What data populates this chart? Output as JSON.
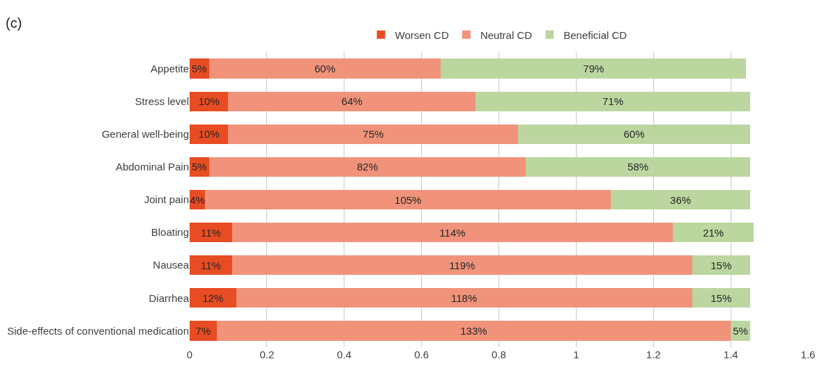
{
  "chart_data": {
    "type": "bar",
    "orientation": "horizontal",
    "stacked": true,
    "annotations": [
      "(c)"
    ],
    "categories": [
      "Appetite",
      "Stress level",
      "General well-being",
      "Abdominal Pain",
      "Joint pain",
      "Bloating",
      "Nausea",
      "Diarrhea",
      "Side-effects of conventional medication"
    ],
    "series": [
      {
        "name": "Worsen CD",
        "color": "#e84c22",
        "values": [
          0.05,
          0.1,
          0.1,
          0.05,
          0.04,
          0.11,
          0.11,
          0.12,
          0.07
        ],
        "value_labels": [
          "5%",
          "10%",
          "10%",
          "5%",
          "4%",
          "11%",
          "11%",
          "12%",
          "7%"
        ]
      },
      {
        "name": "Neutral CD",
        "color": "#f0937a",
        "values": [
          0.6,
          0.64,
          0.75,
          0.82,
          1.05,
          1.14,
          1.19,
          1.18,
          1.33
        ],
        "value_labels": [
          "60%",
          "64%",
          "75%",
          "82%",
          "105%",
          "114%",
          "119%",
          "118%",
          "133%"
        ]
      },
      {
        "name": "Beneficial CD",
        "color": "#bcd6a0",
        "values": [
          0.79,
          0.71,
          0.6,
          0.58,
          0.36,
          0.21,
          0.15,
          0.15,
          0.05
        ],
        "value_labels": [
          "79%",
          "71%",
          "60%",
          "58%",
          "36%",
          "21%",
          "15%",
          "15%",
          "5%"
        ]
      }
    ],
    "xlim": [
      0,
      1.6
    ],
    "xticks": [
      0,
      0.2,
      0.4,
      0.6,
      0.8,
      1,
      1.2,
      1.4,
      1.6
    ],
    "grid": "x",
    "legend": "top"
  }
}
